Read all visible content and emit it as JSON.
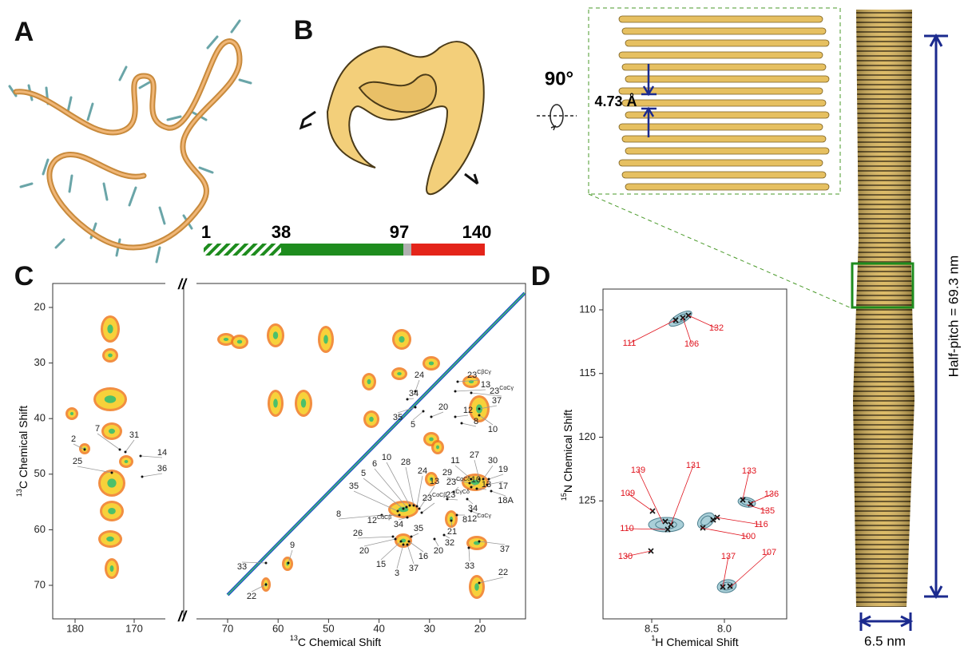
{
  "panel_labels": [
    "A",
    "B",
    "C",
    "D"
  ],
  "sequence": {
    "residues": [
      1,
      38,
      97,
      140
    ]
  },
  "panel_b": {
    "rotation": "90°",
    "rise": "4.73 Å",
    "half_pitch": "Half-pitch = 69.3 nm",
    "width": "6.5 nm"
  },
  "panel_c": {
    "x_axis": {
      "mass": "13",
      "text": "C Chemical Shift"
    },
    "y_axis": {
      "mass": "13",
      "text": "C Chemical Shift"
    },
    "break_mark": "//",
    "left_xticks": [
      180,
      170
    ],
    "xticks": [
      70,
      60,
      50,
      40,
      30,
      20
    ],
    "yticks": [
      20,
      30,
      40,
      50,
      60,
      70
    ],
    "peak_labels": [
      2,
      7,
      31,
      25,
      14,
      36,
      9,
      33,
      22,
      24,
      {
        "text": 23,
        "sup": "CβCγ"
      },
      13,
      {
        "text": 23,
        "sup": "CαCγ"
      },
      37,
      34,
      35,
      5,
      20,
      12,
      8,
      10,
      11,
      27,
      30,
      19,
      29,
      17,
      "18A",
      {
        "text": 23,
        "sup": "CαCδ"
      },
      10,
      13,
      {
        "text": 23,
        "sup": "CγCδ"
      },
      34,
      {
        "text": 12,
        "sup": "CαCγ"
      },
      8,
      21,
      32,
      20,
      37,
      33,
      22,
      5,
      6,
      10,
      28,
      24,
      35,
      13,
      {
        "text": 23,
        "sup": "CαCβ"
      },
      8,
      {
        "text": 12,
        "sup": "CαCβ"
      },
      34,
      26,
      35,
      20,
      15,
      3,
      37,
      16
    ]
  },
  "panel_d": {
    "x_axis": {
      "mass": "1",
      "text": "H Chemical Shift"
    },
    "y_axis": {
      "mass": "15",
      "text": "N Chemical Shift"
    },
    "xticks": [
      8.5,
      {
        "value": 8,
        "label": "8.0"
      }
    ],
    "yticks": [
      110,
      115,
      120,
      125
    ],
    "peak_labels": [
      111,
      106,
      132,
      139,
      131,
      109,
      110,
      130,
      133,
      136,
      135,
      116,
      100,
      137,
      107
    ]
  }
}
